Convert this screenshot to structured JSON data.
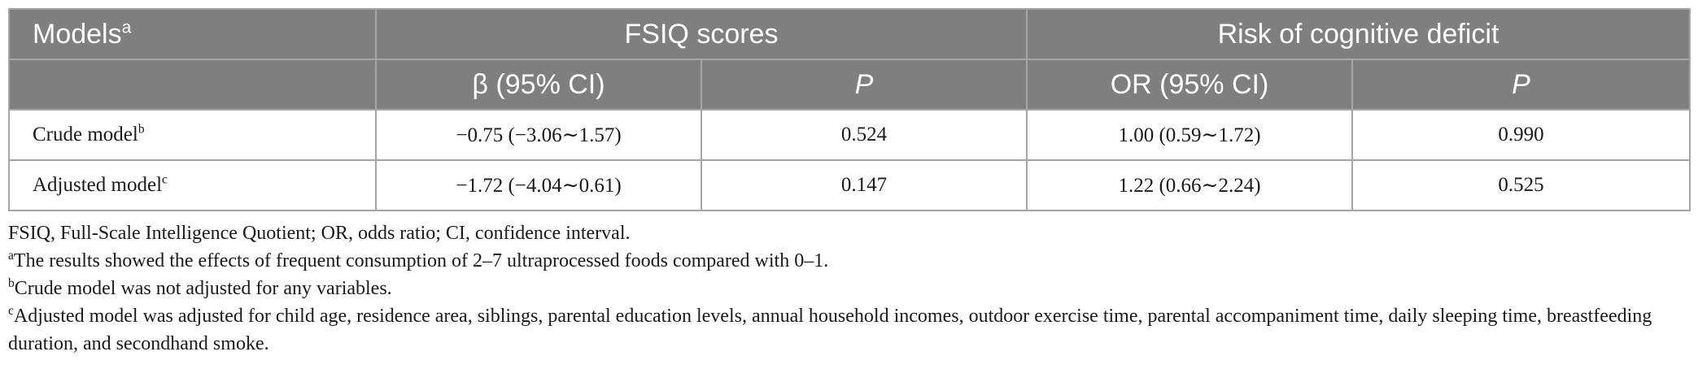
{
  "table": {
    "header": {
      "models_label": "Models",
      "models_sup": "a",
      "group_fsiq": "FSIQ scores",
      "group_risk": "Risk of cognitive deficit",
      "beta_ci": "β (95% CI)",
      "p_fsiq": "P",
      "or_ci": "OR (95% CI)",
      "p_risk": "P"
    },
    "rows": [
      {
        "model": "Crude model",
        "sup": "b",
        "beta": "−0.75 (−3.06∼1.57)",
        "p_fsiq": "0.524",
        "or": "1.00 (0.59∼1.72)",
        "p_risk": "0.990"
      },
      {
        "model": "Adjusted model",
        "sup": "c",
        "beta": "−1.72 (−4.04∼0.61)",
        "p_fsiq": "0.147",
        "or": "1.22 (0.66∼2.24)",
        "p_risk": "0.525"
      }
    ]
  },
  "footnotes": {
    "abbrev": "FSIQ, Full-Scale Intelligence Quotient; OR, odds ratio; CI, confidence interval.",
    "a_mark": "a",
    "a_text": "The results showed the effects of frequent consumption of 2–7 ultraprocessed foods compared with 0–1.",
    "b_mark": "b",
    "b_text": "Crude model was not adjusted for any variables.",
    "c_mark": "c",
    "c_text": "Adjusted model was adjusted for child age, residence area, siblings, parental education levels, annual household incomes, outdoor exercise time, parental accompaniment time, daily sleeping time, breastfeeding duration, and secondhand smoke."
  }
}
